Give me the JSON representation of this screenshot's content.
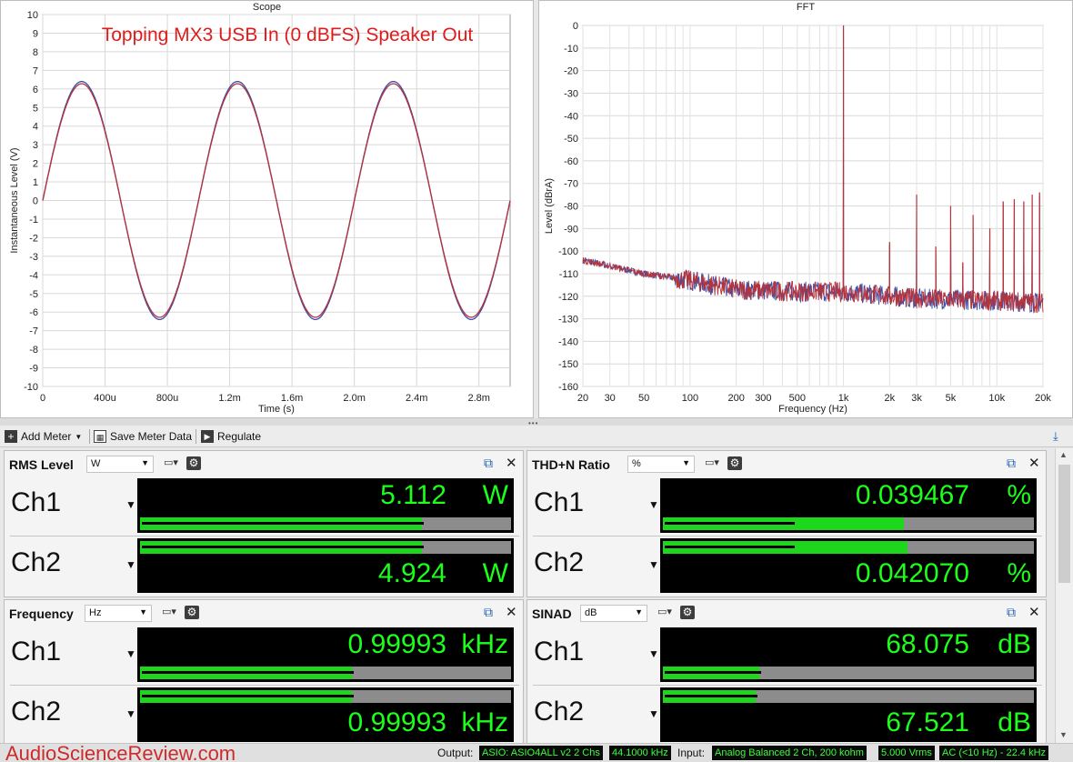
{
  "scope": {
    "title": "Scope",
    "annotation": "Topping MX3 USB In (0 dBFS) Speaker Out",
    "xlabel": "Time (s)",
    "ylabel": "Instantaneous Level (V)",
    "xticks": [
      "0",
      "400u",
      "800u",
      "1.2m",
      "1.6m",
      "2.0m",
      "2.4m",
      "2.8m"
    ],
    "yticks": [
      "10",
      "9",
      "8",
      "7",
      "6",
      "5",
      "4",
      "3",
      "2",
      "1",
      "0",
      "-1",
      "-2",
      "-3",
      "-4",
      "-5",
      "-6",
      "-7",
      "-8",
      "-9",
      "-10"
    ]
  },
  "fft": {
    "title": "FFT",
    "xlabel": "Frequency (Hz)",
    "ylabel": "Level (dBrA)",
    "xticks": [
      "20",
      "30",
      "50",
      "100",
      "200",
      "300",
      "500",
      "1k",
      "2k",
      "3k",
      "5k",
      "10k",
      "20k"
    ],
    "yticks": [
      "0",
      "-10",
      "-20",
      "-30",
      "-40",
      "-50",
      "-60",
      "-70",
      "-80",
      "-90",
      "-100",
      "-110",
      "-120",
      "-130",
      "-140",
      "-150",
      "-160"
    ]
  },
  "chart_data": [
    {
      "type": "line",
      "title": "Scope",
      "xlabel": "Time (s)",
      "ylabel": "Instantaneous Level (V)",
      "xlim": [
        0,
        0.003
      ],
      "ylim": [
        -10,
        10
      ],
      "grid": true,
      "series": [
        {
          "color": "#3a4fa8",
          "amplitude_v": 6.4,
          "frequency_hz": 999.93
        },
        {
          "color": "#b8323a",
          "amplitude_v": 6.28,
          "frequency_hz": 999.93
        }
      ]
    },
    {
      "type": "line",
      "title": "FFT",
      "xlabel": "Frequency (Hz)",
      "ylabel": "Level (dBrA)",
      "xscale": "log",
      "xlim": [
        20,
        20000
      ],
      "ylim": [
        -160,
        0
      ],
      "grid": true,
      "peaks_hz_db": [
        [
          1000,
          0
        ],
        [
          2000,
          -96
        ],
        [
          3000,
          -75
        ],
        [
          4000,
          -98
        ],
        [
          5000,
          -80
        ],
        [
          6000,
          -105
        ],
        [
          7000,
          -84
        ],
        [
          9000,
          -90
        ],
        [
          11000,
          -78
        ],
        [
          13000,
          -77
        ],
        [
          15000,
          -78
        ],
        [
          17000,
          -75
        ],
        [
          19000,
          -74
        ]
      ],
      "noise_floor": [
        [
          20,
          -104
        ],
        [
          50,
          -110
        ],
        [
          100,
          -113
        ],
        [
          200,
          -117
        ],
        [
          500,
          -118
        ],
        [
          1000,
          -118
        ],
        [
          3000,
          -121
        ],
        [
          10000,
          -122
        ],
        [
          20000,
          -123
        ]
      ],
      "series": [
        {
          "color": "#3a4fa8"
        },
        {
          "color": "#b8323a"
        }
      ]
    }
  ],
  "toolbar": {
    "add_meter": "Add Meter",
    "save_meter_data": "Save Meter Data",
    "regulate": "Regulate"
  },
  "meters": [
    {
      "title": "RMS Level",
      "unit_select": "W",
      "ch1": {
        "label": "Ch1",
        "value": "5.112",
        "unit": "W",
        "bar_fraction": 0.76,
        "mark_fraction": 0.76
      },
      "ch2": {
        "label": "Ch2",
        "value": "4.924",
        "unit": "W",
        "bar_fraction": 0.76,
        "mark_fraction": 0.76
      }
    },
    {
      "title": "THD+N Ratio",
      "unit_select": "%",
      "ch1": {
        "label": "Ch1",
        "value": "0.039467",
        "unit": "%",
        "bar_fraction": 0.65,
        "mark_fraction": 0.35
      },
      "ch2": {
        "label": "Ch2",
        "value": "0.042070",
        "unit": "%",
        "bar_fraction": 0.66,
        "mark_fraction": 0.35
      }
    },
    {
      "title": "Frequency",
      "unit_select": "Hz",
      "ch1": {
        "label": "Ch1",
        "value": "0.99993",
        "unit": "kHz",
        "bar_fraction": 0.57,
        "mark_fraction": 0.57
      },
      "ch2": {
        "label": "Ch2",
        "value": "0.99993",
        "unit": "kHz",
        "bar_fraction": 0.57,
        "mark_fraction": 0.57
      }
    },
    {
      "title": "SINAD",
      "unit_select": "dB",
      "ch1": {
        "label": "Ch1",
        "value": "68.075",
        "unit": "dB",
        "bar_fraction": 0.26,
        "mark_fraction": 0.26
      },
      "ch2": {
        "label": "Ch2",
        "value": "67.521",
        "unit": "dB",
        "bar_fraction": 0.25,
        "mark_fraction": 0.25
      }
    }
  ],
  "status": {
    "watermark": "AudioScienceReview.com",
    "output_label": "Output:",
    "output_device": "ASIO: ASIO4ALL v2 2 Chs",
    "output_rate": "44.1000 kHz",
    "input_label": "Input:",
    "input_device": "Analog Balanced 2 Ch, 200 kohm",
    "input_range": "5.000 Vrms",
    "input_coupling": "AC (<10 Hz) - 22.4 kHz"
  },
  "colors": {
    "ch1": "#3a4fa8",
    "ch2": "#b8323a",
    "readout_green": "#1bff1b",
    "bar_green": "#1ed61e",
    "annotation_red": "#e01b1b"
  }
}
